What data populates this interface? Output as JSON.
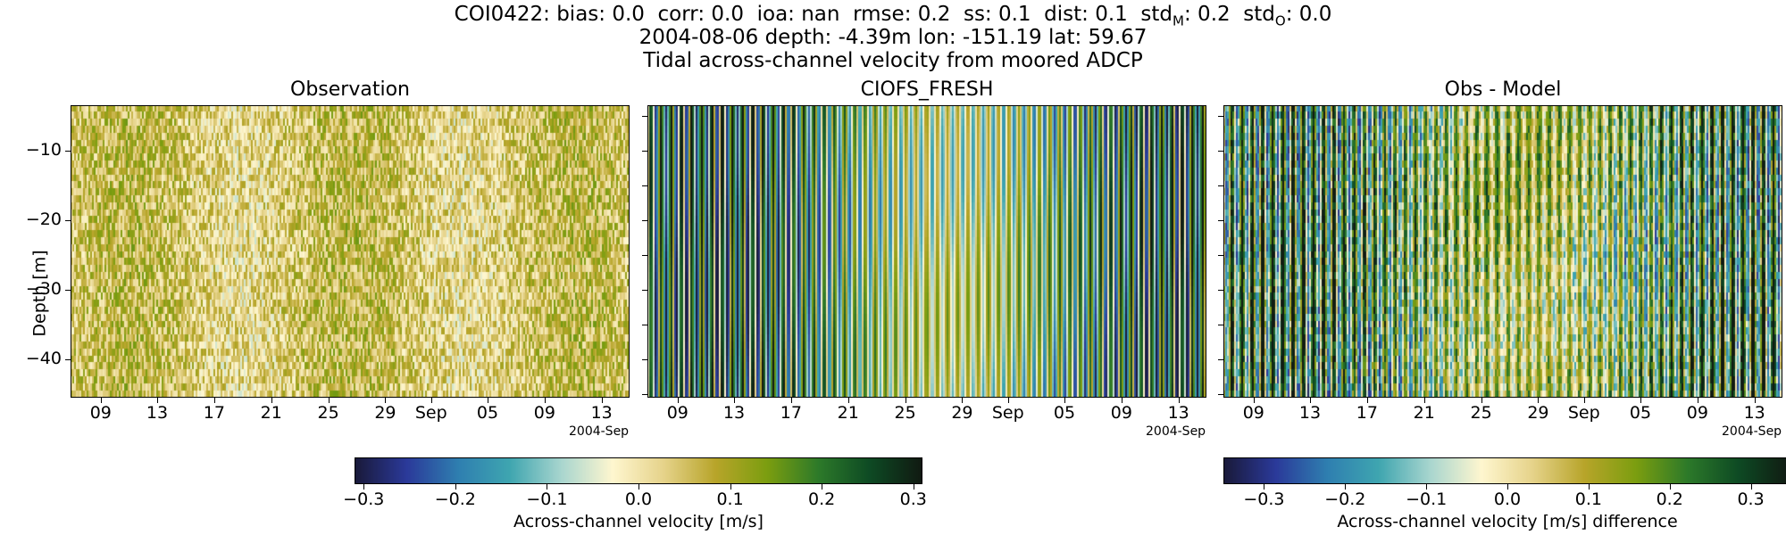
{
  "title": {
    "metrics_line": "COI0422: bias: 0.0  corr: 0.0  ioa: nan  rmse: 0.2  ss: 0.1  dist: 0.1  std_M: 0.2  std_O: 0.0",
    "location_line": "2004-08-06 depth: -4.39m lon: -151.19 lat: 59.67",
    "description_line": "Tidal across-channel velocity from moored ADCP"
  },
  "colors": {
    "colormap": [
      "#1a1a3a",
      "#2b3a9a",
      "#2f7fb0",
      "#3fa6b0",
      "#a9d6cf",
      "#fff7d0",
      "#e6d38a",
      "#b8a52a",
      "#7c9e10",
      "#2d7a2a",
      "#0e4a24",
      "#111a12"
    ]
  },
  "chart_data": [
    {
      "type": "heatmap",
      "title": "Observation",
      "ylabel": "Depth [m]",
      "xlabel": "",
      "x_tick_labels": [
        "09",
        "13",
        "17",
        "21",
        "25",
        "29",
        "Sep",
        "05",
        "09",
        "13"
      ],
      "x_offset_label": "2004-Sep",
      "y_tick_labels": [
        "−10",
        "−20",
        "−30",
        "−40"
      ],
      "y_ticks": [
        -10,
        -20,
        -30,
        -40
      ],
      "ylim": [
        -45.5,
        -3.5
      ],
      "x_range": [
        "2004-08-06",
        "2004-09-15"
      ],
      "pattern": "weak noisy positive, near zero"
    },
    {
      "type": "heatmap",
      "title": "CIOFS_FRESH",
      "x_tick_labels": [
        "09",
        "13",
        "17",
        "21",
        "25",
        "29",
        "Sep",
        "05",
        "09",
        "13"
      ],
      "x_offset_label": "2004-Sep",
      "y_ticks": [
        -10,
        -20,
        -30,
        -40
      ],
      "ylim": [
        -45.5,
        -3.5
      ],
      "x_range": [
        "2004-08-06",
        "2004-09-15"
      ],
      "pattern": "strong tidal oscillation, about +/-0.3"
    },
    {
      "type": "heatmap",
      "title": "Obs - Model",
      "x_tick_labels": [
        "09",
        "13",
        "17",
        "21",
        "25",
        "29",
        "Sep",
        "05",
        "09",
        "13"
      ],
      "x_offset_label": "2004-Sep",
      "y_ticks": [
        -10,
        -20,
        -30,
        -40
      ],
      "ylim": [
        -45.5,
        -3.5
      ],
      "x_range": [
        "2004-08-06",
        "2004-09-15"
      ],
      "pattern": "mirrored tidal oscillation"
    }
  ],
  "colorbars": [
    {
      "label": "Across-channel velocity [m/s]",
      "range": [
        -0.31,
        0.31
      ],
      "ticks": [
        -0.3,
        -0.2,
        -0.1,
        0.0,
        0.1,
        0.2,
        0.3
      ],
      "tick_labels": [
        "−0.3",
        "−0.2",
        "−0.1",
        "0.0",
        "0.1",
        "0.2",
        "0.3"
      ]
    },
    {
      "label": "Across-channel velocity [m/s] difference",
      "range": [
        -0.35,
        0.35
      ],
      "ticks": [
        -0.3,
        -0.2,
        -0.1,
        0.0,
        0.1,
        0.2,
        0.3
      ],
      "tick_labels": [
        "−0.3",
        "−0.2",
        "−0.1",
        "0.0",
        "0.1",
        "0.2",
        "0.3"
      ]
    }
  ]
}
